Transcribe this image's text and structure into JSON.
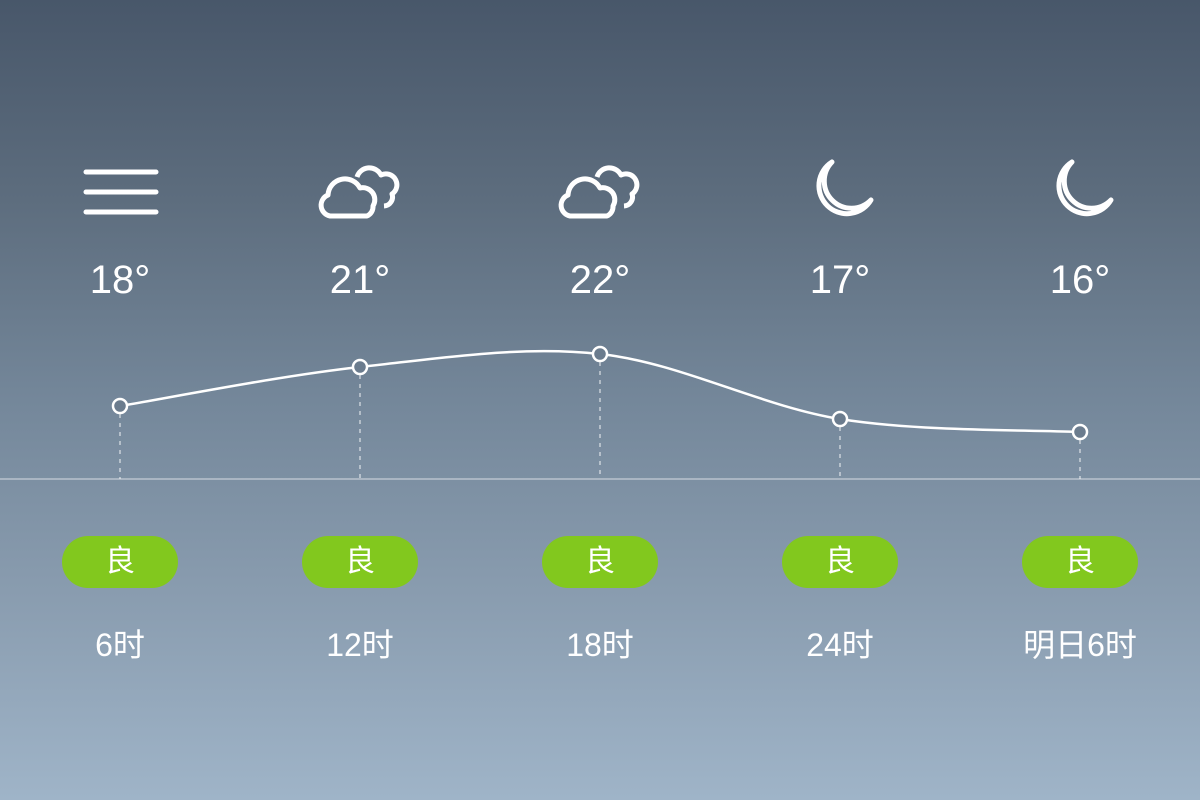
{
  "colors": {
    "aqi_good": "#82c81e",
    "line": "#ffffff"
  },
  "forecast": [
    {
      "icon": "haze-icon",
      "temp": "18°",
      "aqi": "良",
      "time": "6时"
    },
    {
      "icon": "cloudy-icon",
      "temp": "21°",
      "aqi": "良",
      "time": "12时"
    },
    {
      "icon": "cloudy-icon",
      "temp": "22°",
      "aqi": "良",
      "time": "18时"
    },
    {
      "icon": "moon-icon",
      "temp": "17°",
      "aqi": "良",
      "time": "24时"
    },
    {
      "icon": "moon-icon",
      "temp": "16°",
      "aqi": "良",
      "time": "明日6时"
    }
  ],
  "chart_data": {
    "type": "line",
    "categories": [
      "6时",
      "12时",
      "18时",
      "24时",
      "明日6时"
    ],
    "values": [
      18,
      21,
      22,
      17,
      16
    ]
  }
}
